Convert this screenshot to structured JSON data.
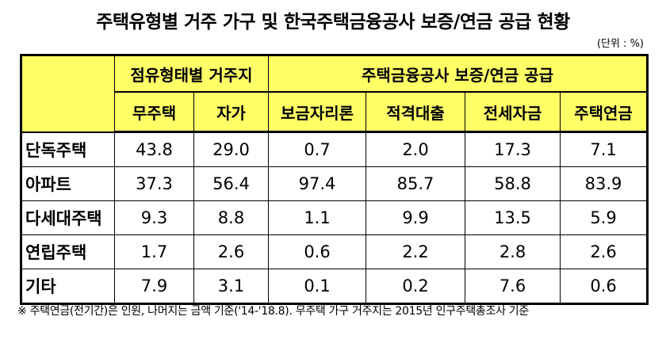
{
  "title": "주택유형별 거주 가구 및 한국주택금융공사 보증/연금 공급 현황",
  "unit": "(단위 : %)",
  "table": {
    "groups": [
      "점유형태별 거주지",
      "주택금융공사 보증/연금 공급"
    ],
    "columns": [
      "무주택",
      "자가",
      "보금자리론",
      "적격대출",
      "전세자금",
      "주택연금"
    ],
    "rows": [
      [
        "단독주택",
        "43.8",
        "29.0",
        "0.7",
        "2.0",
        "17.3",
        "7.1"
      ],
      [
        "아파트",
        "37.3",
        "56.4",
        "97.4",
        "85.7",
        "58.8",
        "83.9"
      ],
      [
        "다세대주택",
        "9.3",
        "8.8",
        "1.1",
        "9.9",
        "13.5",
        "5.9"
      ],
      [
        "연립주택",
        "1.7",
        "2.6",
        "0.6",
        "2.2",
        "2.8",
        "2.6"
      ],
      [
        "기타",
        "7.9",
        "3.1",
        "0.1",
        "0.2",
        "7.6",
        "0.6"
      ]
    ]
  },
  "footnote": "※ 주택연금(전기간)은 인원, 나머지는 금액 기준('14-'18.8). 무주택 가구 거주지는 2015년 인구주택총조사 기준"
}
